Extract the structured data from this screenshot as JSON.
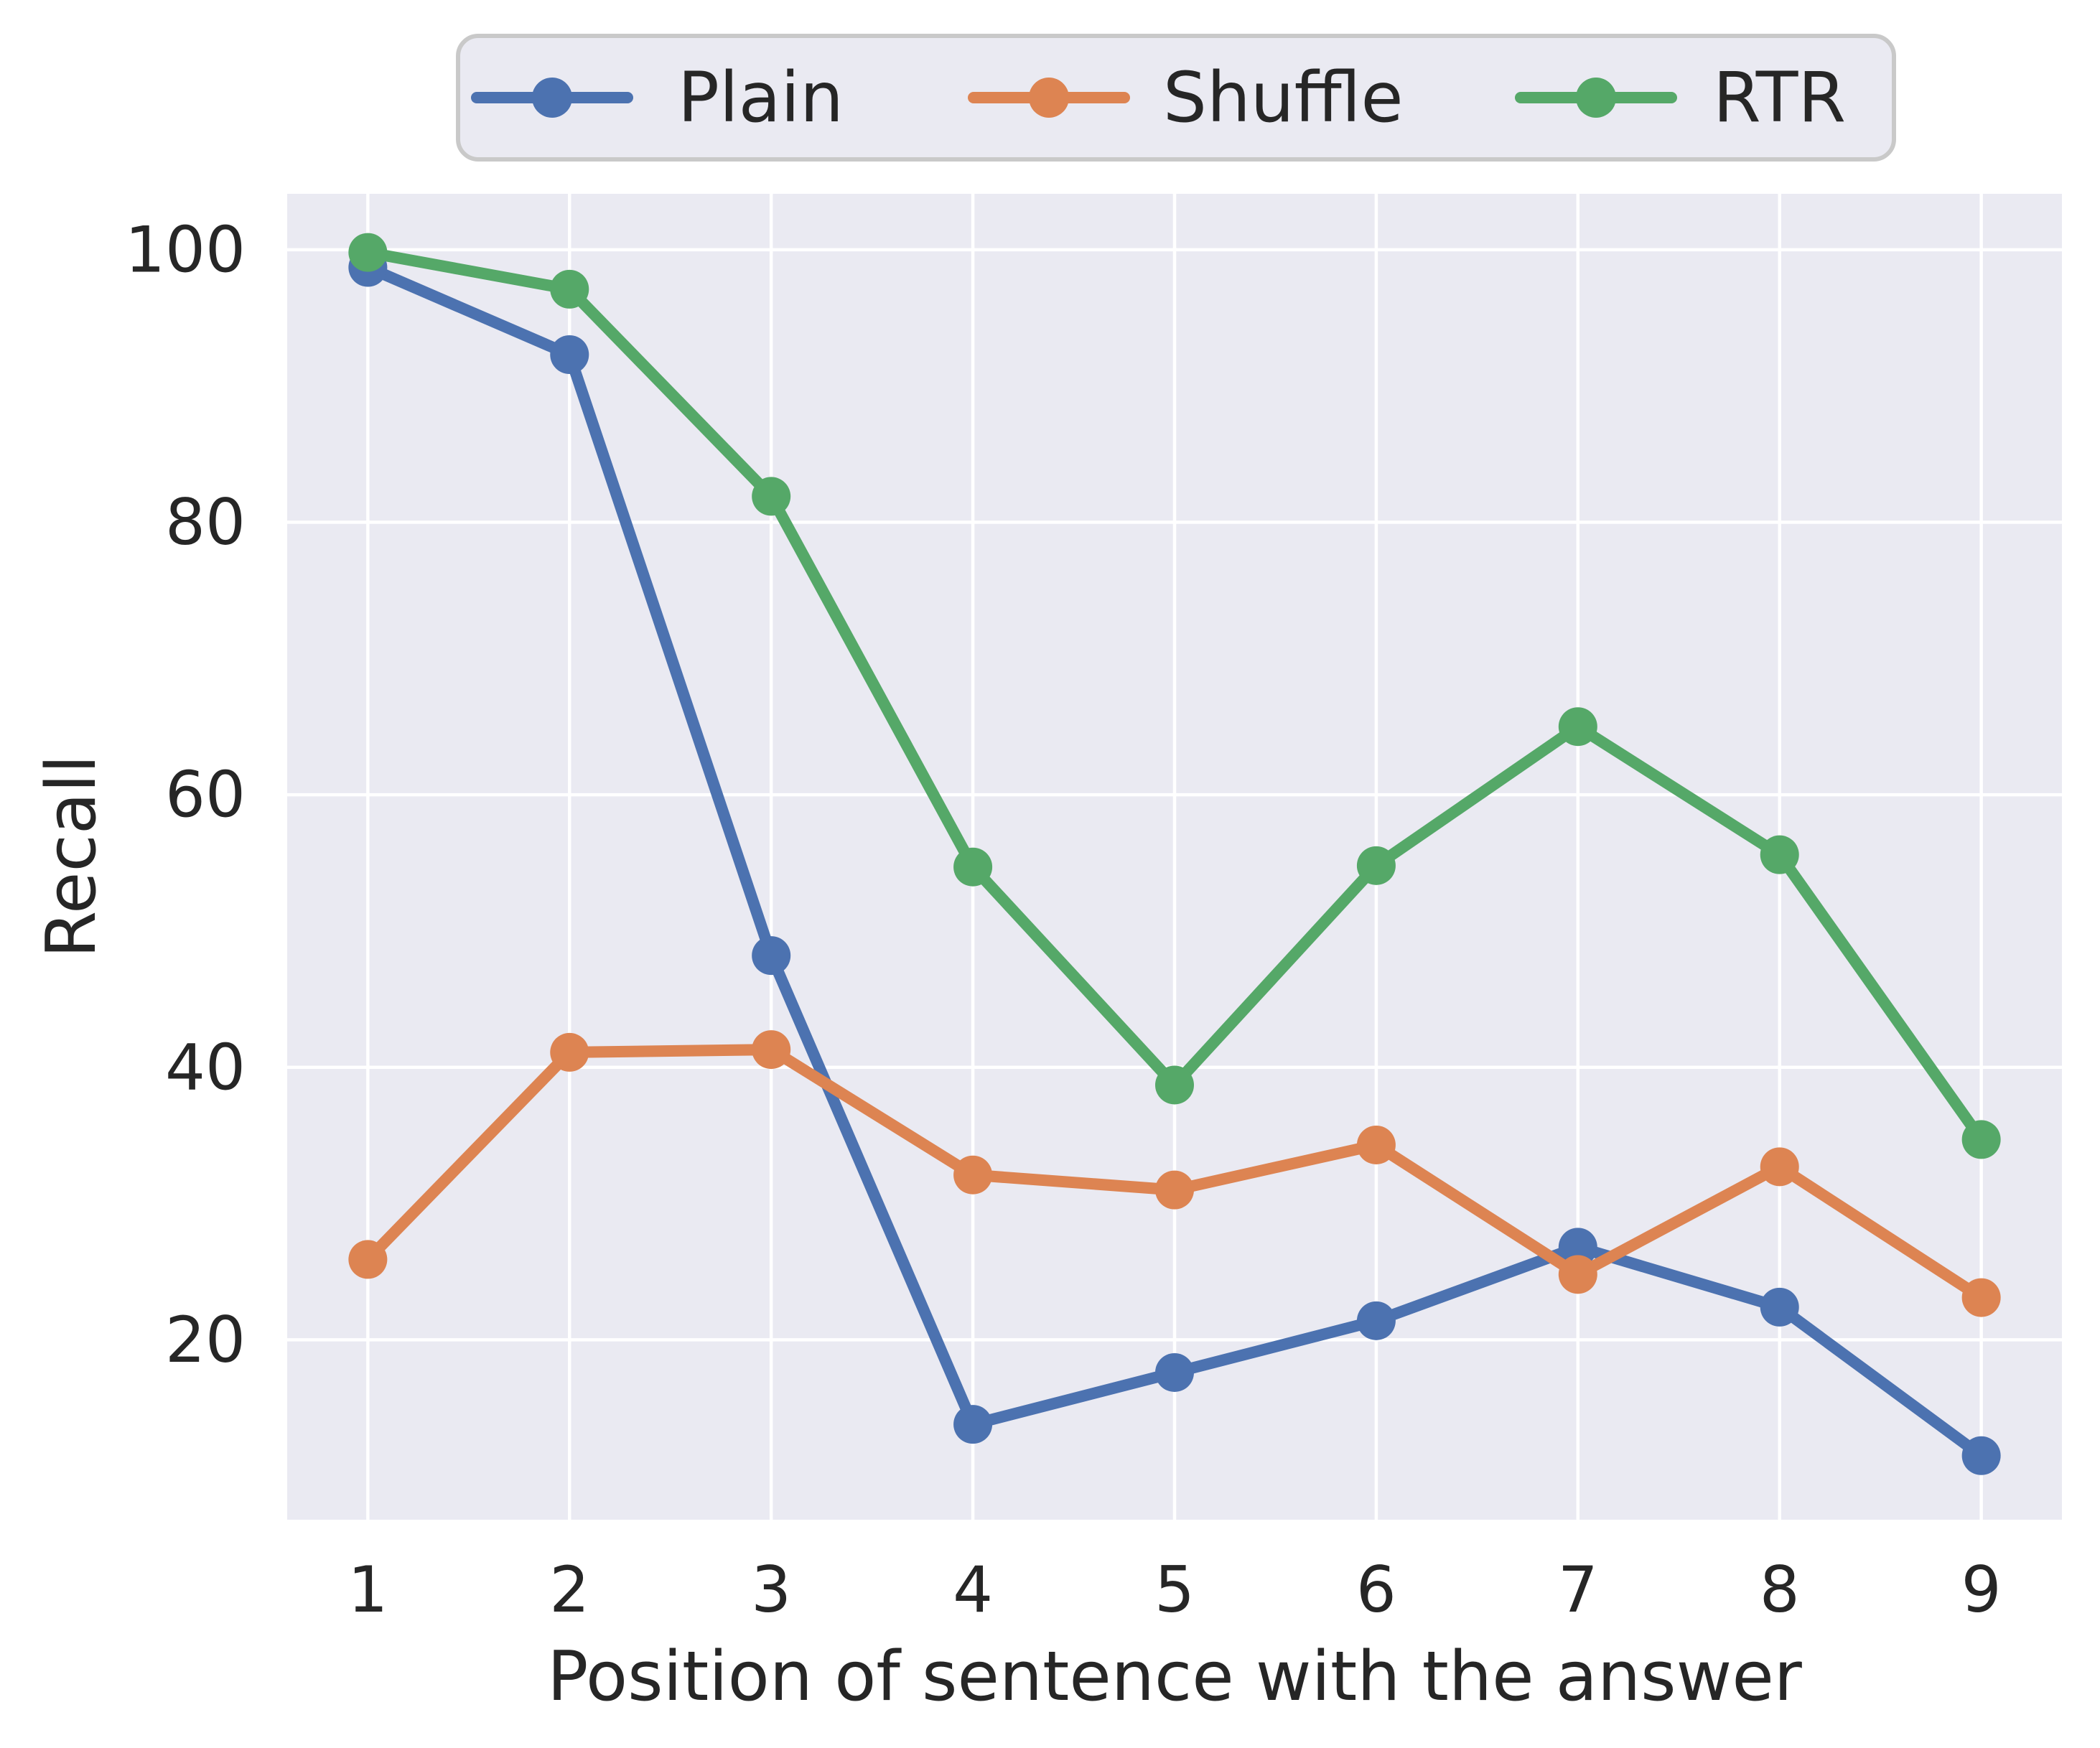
{
  "chart_data": {
    "type": "line",
    "title": "",
    "xlabel": "Position of sentence with the answer",
    "ylabel": "Recall",
    "x": [
      1,
      2,
      3,
      4,
      5,
      6,
      7,
      8,
      9
    ],
    "series": [
      {
        "name": "Plain",
        "color": "#4C72B0",
        "values": [
          98.7,
          92.3,
          48.2,
          13.8,
          17.6,
          21.4,
          26.8,
          22.4,
          11.5
        ]
      },
      {
        "name": "Shuffle",
        "color": "#DD8452",
        "values": [
          25.9,
          41.1,
          41.3,
          32.1,
          31.0,
          34.3,
          24.8,
          32.7,
          23.1
        ]
      },
      {
        "name": "RTR",
        "color": "#55A868",
        "values": [
          99.8,
          97.1,
          81.9,
          54.7,
          38.7,
          54.8,
          65.0,
          55.6,
          34.7
        ]
      }
    ],
    "x_ticks": [
      1,
      2,
      3,
      4,
      5,
      6,
      7,
      8,
      9
    ],
    "y_ticks": [
      20,
      40,
      60,
      80,
      100
    ],
    "xlim": [
      0.6,
      9.4
    ],
    "ylim": [
      6.8,
      104.1
    ],
    "grid": true,
    "legend_position": "top",
    "style": {
      "figure_background": "#FFFFFF",
      "axes_background": "#EAEAF2",
      "grid_color": "#FFFFFF",
      "text_color": "#262626",
      "legend_background": "#EAEAF2",
      "legend_border": "#C9C9C9"
    }
  }
}
